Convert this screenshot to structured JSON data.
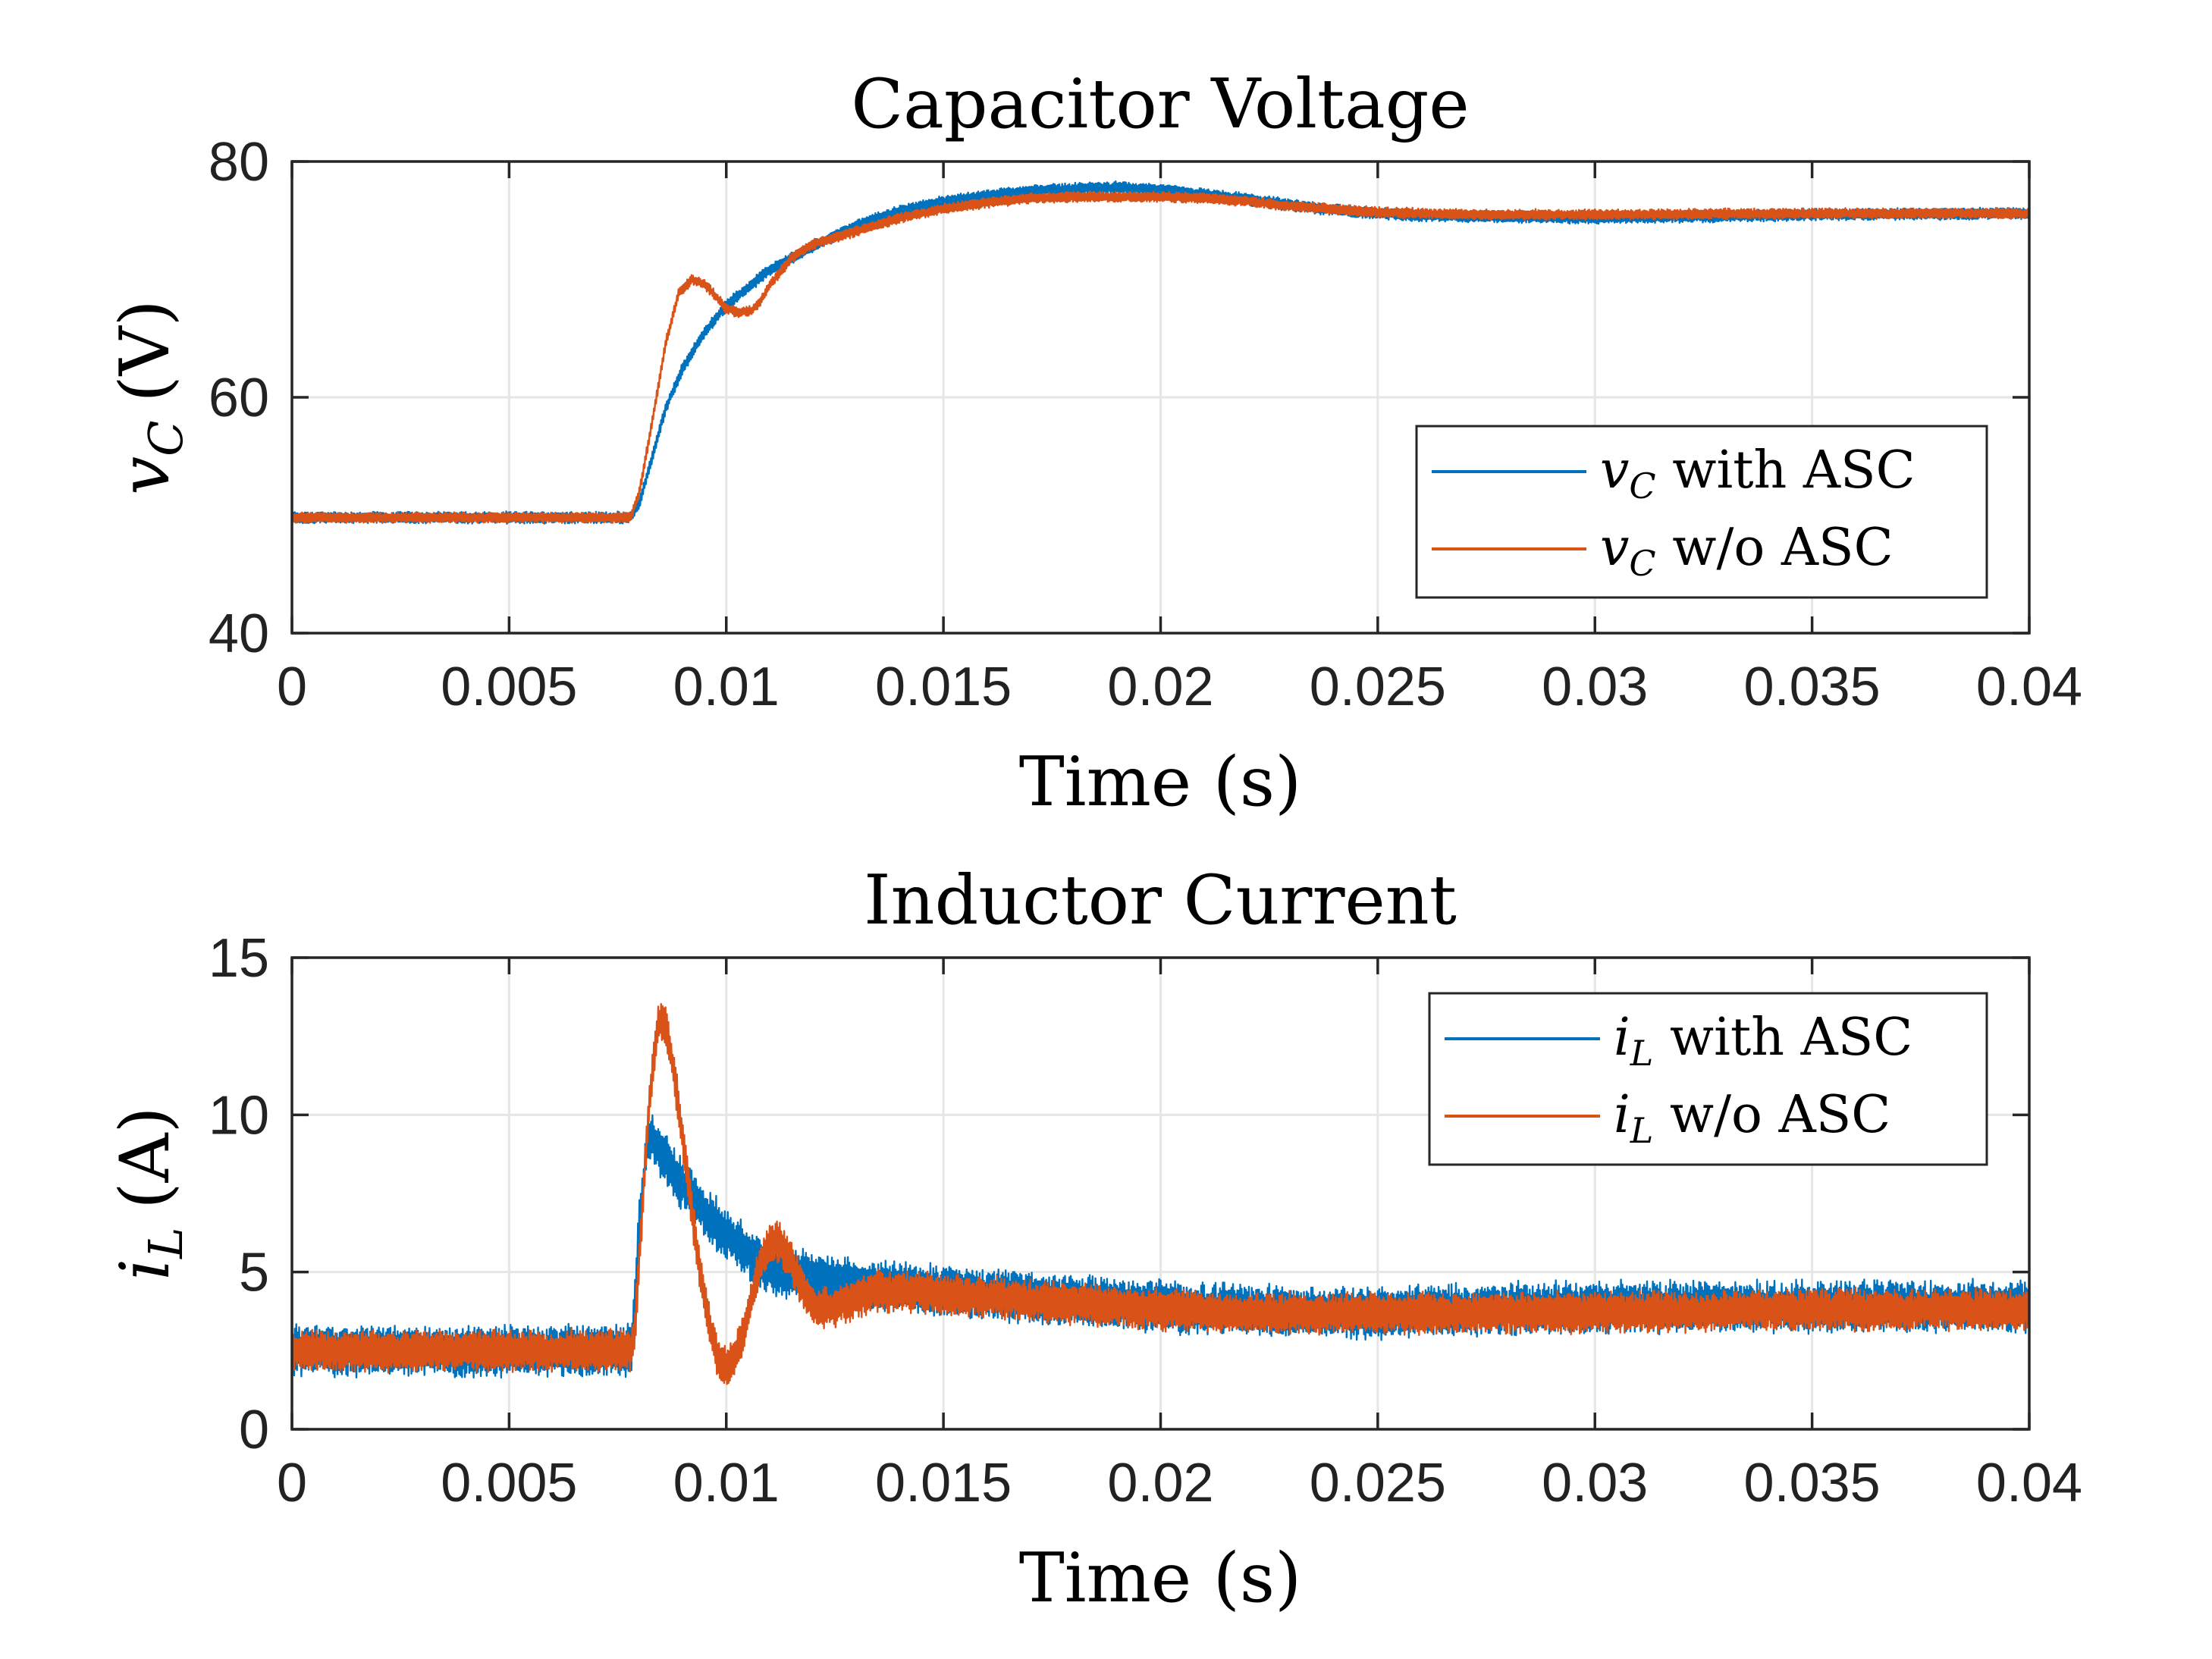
{
  "chart_data": [
    {
      "type": "line",
      "title": "Capacitor Voltage",
      "xlabel": "Time (s)",
      "ylabel": {
        "var": "v",
        "sub": "C",
        "unit": "(V)"
      },
      "xlim": [
        0,
        0.04
      ],
      "ylim": [
        40,
        80
      ],
      "xticks": [
        0,
        0.005,
        0.01,
        0.015,
        0.02,
        0.025,
        0.03,
        0.035,
        0.04
      ],
      "xtick_labels": [
        "0",
        "0.005",
        "0.01",
        "0.015",
        "0.02",
        "0.025",
        "0.03",
        "0.035",
        "0.04"
      ],
      "yticks": [
        40,
        60,
        80
      ],
      "ytick_labels": [
        "40",
        "60",
        "80"
      ],
      "grid": true,
      "legend_position": "lower-right",
      "series": [
        {
          "name": "v_C with ASC",
          "legend": {
            "var": "v",
            "sub": "C",
            "text": " with ASC"
          },
          "color": "#0072BD",
          "noise": 0.45,
          "x": [
            0,
            0.0078,
            0.008,
            0.0083,
            0.0086,
            0.009,
            0.0095,
            0.01,
            0.0105,
            0.011,
            0.012,
            0.013,
            0.014,
            0.015,
            0.016,
            0.017,
            0.018,
            0.019,
            0.02,
            0.021,
            0.022,
            0.023,
            0.024,
            0.025,
            0.026,
            0.028,
            0.03,
            0.032,
            0.035,
            0.04
          ],
          "y": [
            49.8,
            49.8,
            51.0,
            55.0,
            59.0,
            62.5,
            65.5,
            67.8,
            69.3,
            70.8,
            72.8,
            74.6,
            75.8,
            76.6,
            77.1,
            77.5,
            77.7,
            77.8,
            77.6,
            77.2,
            76.8,
            76.3,
            75.9,
            75.6,
            75.4,
            75.3,
            75.2,
            75.3,
            75.5,
            75.6
          ]
        },
        {
          "name": "v_C w/o ASC",
          "legend": {
            "var": "v",
            "sub": "C",
            "text": " w/o ASC"
          },
          "color": "#D95319",
          "noise": 0.4,
          "x": [
            0,
            0.0078,
            0.008,
            0.0083,
            0.0086,
            0.0089,
            0.0092,
            0.0095,
            0.0098,
            0.01,
            0.0103,
            0.0106,
            0.0108,
            0.011,
            0.0115,
            0.012,
            0.013,
            0.014,
            0.015,
            0.016,
            0.017,
            0.018,
            0.019,
            0.02,
            0.021,
            0.022,
            0.023,
            0.025,
            0.027,
            0.03,
            0.035,
            0.04
          ],
          "y": [
            49.8,
            49.8,
            52.0,
            58.0,
            64.5,
            68.8,
            70.0,
            69.6,
            68.4,
            67.5,
            67.2,
            67.4,
            68.2,
            69.5,
            71.8,
            73.0,
            74.1,
            75.2,
            76.0,
            76.5,
            76.9,
            77.0,
            77.0,
            77.0,
            76.9,
            76.6,
            76.2,
            75.7,
            75.5,
            75.5,
            75.6,
            75.6
          ]
        }
      ]
    },
    {
      "type": "line",
      "title": "Inductor Current",
      "xlabel": "Time (s)",
      "ylabel": {
        "var": "i",
        "sub": "L",
        "unit": "(A)"
      },
      "xlim": [
        0,
        0.04
      ],
      "ylim": [
        0,
        15
      ],
      "xticks": [
        0,
        0.005,
        0.01,
        0.015,
        0.02,
        0.025,
        0.03,
        0.035,
        0.04
      ],
      "xtick_labels": [
        "0",
        "0.005",
        "0.01",
        "0.015",
        "0.02",
        "0.025",
        "0.03",
        "0.035",
        "0.04"
      ],
      "yticks": [
        0,
        5,
        10,
        15
      ],
      "ytick_labels": [
        "0",
        "5",
        "10",
        "15"
      ],
      "grid": true,
      "legend_position": "top-right",
      "series": [
        {
          "name": "i_L with ASC",
          "legend": {
            "var": "i",
            "sub": "L",
            "text": " with ASC"
          },
          "color": "#0072BD",
          "noise": 0.75,
          "x": [
            0,
            0.0078,
            0.00785,
            0.008,
            0.0082,
            0.0085,
            0.009,
            0.0095,
            0.01,
            0.0105,
            0.011,
            0.012,
            0.013,
            0.014,
            0.015,
            0.016,
            0.017,
            0.018,
            0.02,
            0.022,
            0.024,
            0.025,
            0.027,
            0.03,
            0.035,
            0.04
          ],
          "y": [
            2.5,
            2.5,
            3.0,
            6.5,
            9.4,
            8.8,
            7.8,
            6.9,
            6.2,
            5.6,
            5.1,
            4.8,
            4.6,
            4.5,
            4.4,
            4.3,
            4.2,
            4.1,
            3.9,
            3.8,
            3.7,
            3.7,
            3.8,
            3.9,
            3.9,
            3.9
          ]
        },
        {
          "name": "i_L w/o ASC",
          "legend": {
            "var": "i",
            "sub": "L",
            "text": " w/o ASC"
          },
          "color": "#D95319",
          "noise": 0.6,
          "x": [
            0,
            0.0078,
            0.0079,
            0.008,
            0.0082,
            0.0084,
            0.0085,
            0.0086,
            0.0088,
            0.009,
            0.0092,
            0.0094,
            0.0096,
            0.0098,
            0.01,
            0.0102,
            0.0104,
            0.0106,
            0.0108,
            0.011,
            0.0112,
            0.0114,
            0.0116,
            0.0118,
            0.012,
            0.0122,
            0.0125,
            0.013,
            0.0135,
            0.014,
            0.015,
            0.016,
            0.018,
            0.02,
            0.022,
            0.025,
            0.03,
            0.035,
            0.04
          ],
          "y": [
            2.5,
            2.5,
            3.2,
            5.5,
            10.0,
            12.6,
            13.0,
            12.8,
            11.3,
            9.2,
            7.0,
            5.0,
            3.4,
            2.3,
            1.9,
            2.3,
            3.2,
            4.3,
            5.3,
            5.9,
            6.0,
            5.6,
            5.0,
            4.4,
            4.0,
            3.8,
            3.9,
            4.2,
            4.4,
            4.4,
            4.3,
            4.2,
            4.0,
            3.8,
            3.7,
            3.7,
            3.7,
            3.8,
            3.8
          ]
        }
      ]
    }
  ]
}
